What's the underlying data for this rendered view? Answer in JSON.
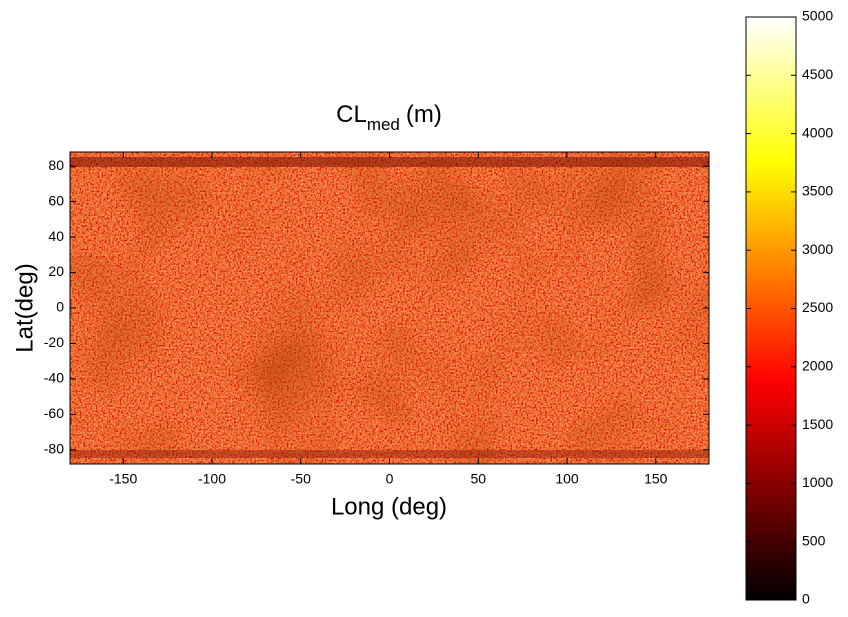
{
  "chart_data": {
    "type": "heatmap",
    "title": "CL",
    "title_subscript": "med",
    "title_suffix": "(m)",
    "x_label": "Long (deg)",
    "y_label": "Lat(deg)",
    "xlim": [
      -180,
      180
    ],
    "xticks": [
      -150,
      -100,
      -50,
      0,
      50,
      100,
      150
    ],
    "ylim": [
      -88,
      88
    ],
    "yticks": [
      -80,
      -60,
      -40,
      -20,
      0,
      20,
      40,
      60,
      80
    ],
    "colormap": "hot",
    "clim": [
      0,
      5000
    ],
    "cticks": [
      0,
      500,
      1000,
      1500,
      2000,
      2500,
      3000,
      3500,
      4000,
      4500,
      5000
    ]
  }
}
